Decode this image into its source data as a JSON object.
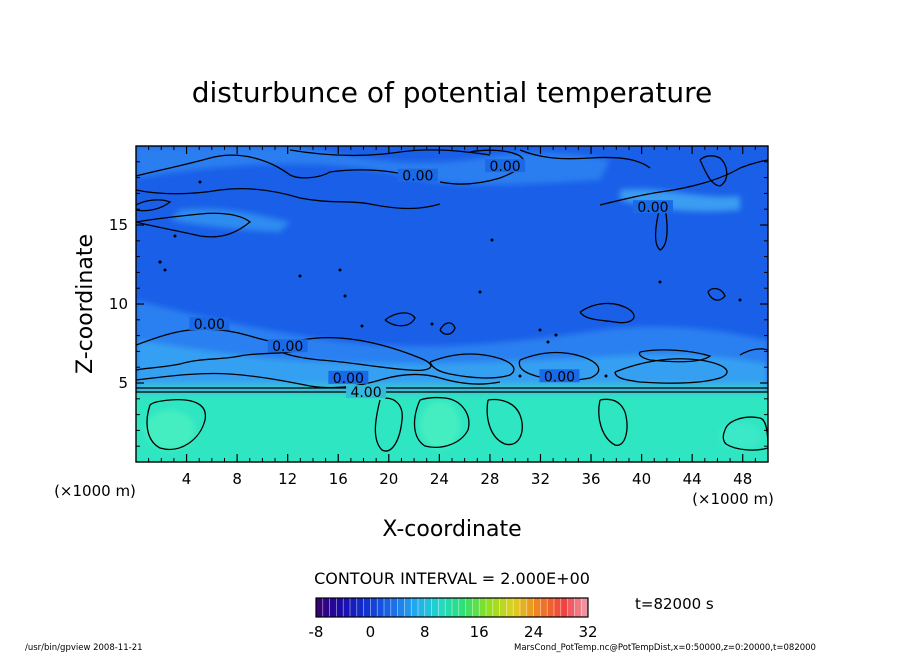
{
  "chart_data": {
    "type": "heatmap",
    "title": "disturbunce of potential temperature",
    "xlabel": "X-coordinate",
    "ylabel": "Z-coordinate",
    "x_unit": "(×1000 m)",
    "y_unit": "(×1000 m)",
    "xlim": [
      0,
      50
    ],
    "ylim": [
      0,
      20
    ],
    "x_ticks": [
      4,
      8,
      12,
      16,
      20,
      24,
      28,
      32,
      36,
      40,
      44,
      48
    ],
    "y_ticks": [
      5,
      10,
      15
    ],
    "contour_interval_label": "CONTOUR INTERVAL = 2.000E+00",
    "time_label": "t=82000 s",
    "colorbar": {
      "min": -8,
      "max": 32,
      "ticks": [
        -8,
        0,
        8,
        16,
        24,
        32
      ],
      "colors": [
        "#3c0070",
        "#1a0aa8",
        "#1030d0",
        "#1a66e6",
        "#22a8f0",
        "#22d8c8",
        "#30e070",
        "#90e020",
        "#e0d020",
        "#f08020",
        "#f04040",
        "#f0a0b0"
      ]
    },
    "field": {
      "lower_layer": {
        "z_range": [
          0,
          4.3
        ],
        "value_approx": 8,
        "color": "#2ee6c2"
      },
      "upper_layer": {
        "z_range": [
          4.3,
          20
        ],
        "value_approx": 0,
        "color": "#1a5fe8"
      }
    },
    "contour_labels": [
      {
        "text": "0.00",
        "x": 22.3,
        "z": 18.0
      },
      {
        "text": "0.00",
        "x": 29.2,
        "z": 18.6
      },
      {
        "text": "0.00",
        "x": 40.9,
        "z": 16.0
      },
      {
        "text": "0.00",
        "x": 5.8,
        "z": 8.6
      },
      {
        "text": "0.00",
        "x": 12.0,
        "z": 7.2
      },
      {
        "text": "0.00",
        "x": 16.8,
        "z": 5.2
      },
      {
        "text": "0.00",
        "x": 33.5,
        "z": 5.3
      },
      {
        "text": "4.00",
        "x": 18.2,
        "z": 4.3
      }
    ],
    "footer_left": "/usr/bin/gpview   2008-11-21",
    "footer_right": "MarsCond_PotTemp.nc@PotTempDist,x=0:50000,z=0:20000,t=082000"
  }
}
